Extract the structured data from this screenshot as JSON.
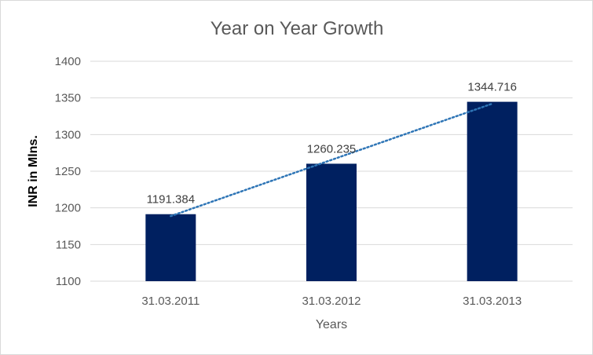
{
  "chart_data": {
    "type": "bar",
    "title": "Year on Year Growth",
    "xlabel": "Years",
    "ylabel": "INR in Mlns.",
    "categories": [
      "31.03.2011",
      "31.03.2012",
      "31.03.2013"
    ],
    "values": [
      1191.384,
      1260.235,
      1344.716
    ],
    "data_labels": [
      "1191.384",
      "1260.235",
      "1344.716"
    ],
    "ylim": [
      1100,
      1400
    ],
    "yticks": [
      1100,
      1150,
      1200,
      1250,
      1300,
      1350,
      1400
    ],
    "grid": true,
    "legend": "none",
    "trendline": {
      "type": "linear",
      "style": "dotted",
      "color": "#2e75b6"
    },
    "bar_color": "#002060"
  }
}
